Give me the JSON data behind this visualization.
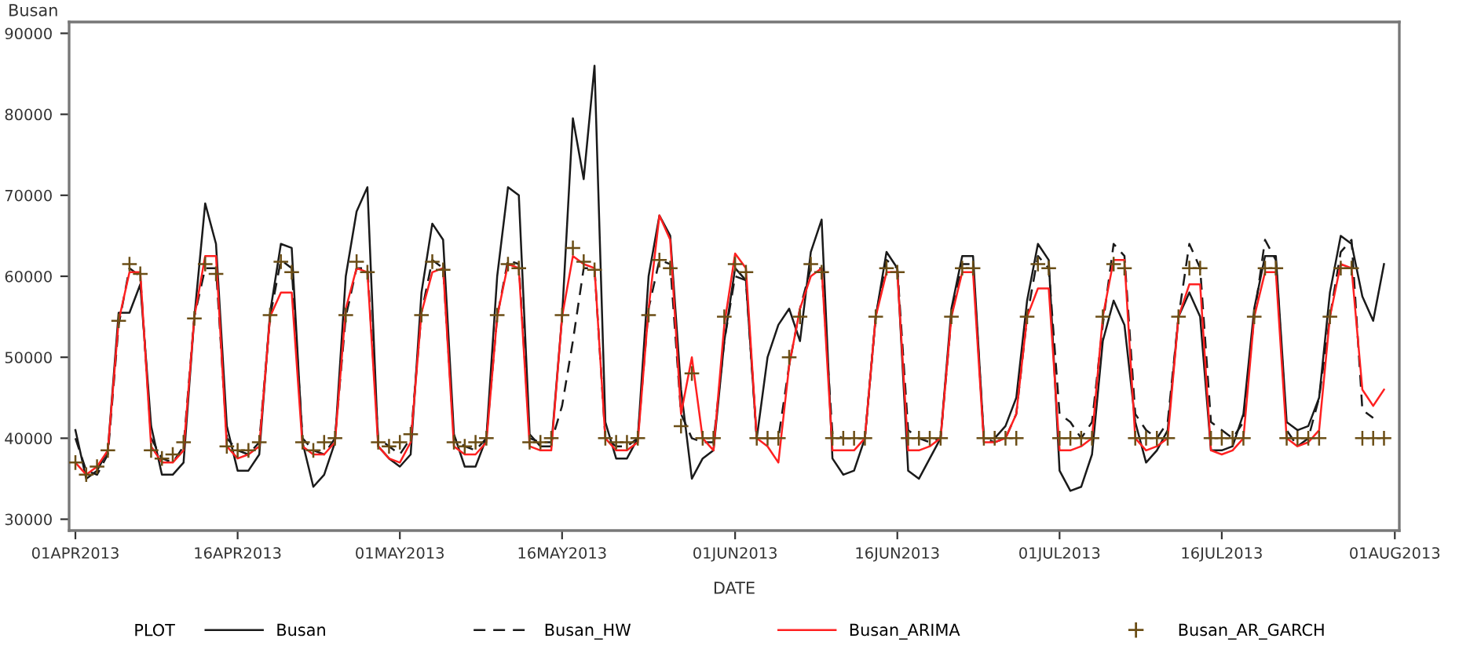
{
  "chart_data": {
    "type": "line",
    "ylabel": "Busan",
    "xlabel": "DATE",
    "legend_title": "PLOT",
    "legend": "bottom",
    "grid": false,
    "x": [
      "2013-04-01",
      "2013-04-02",
      "2013-04-03",
      "2013-04-04",
      "2013-04-05",
      "2013-04-06",
      "2013-04-07",
      "2013-04-08",
      "2013-04-09",
      "2013-04-10",
      "2013-04-11",
      "2013-04-12",
      "2013-04-13",
      "2013-04-14",
      "2013-04-15",
      "2013-04-16",
      "2013-04-17",
      "2013-04-18",
      "2013-04-19",
      "2013-04-20",
      "2013-04-21",
      "2013-04-22",
      "2013-04-23",
      "2013-04-24",
      "2013-04-25",
      "2013-04-26",
      "2013-04-27",
      "2013-04-28",
      "2013-04-29",
      "2013-04-30",
      "2013-05-01",
      "2013-05-02",
      "2013-05-03",
      "2013-05-04",
      "2013-05-05",
      "2013-05-06",
      "2013-05-07",
      "2013-05-08",
      "2013-05-09",
      "2013-05-10",
      "2013-05-11",
      "2013-05-12",
      "2013-05-13",
      "2013-05-14",
      "2013-05-15",
      "2013-05-16",
      "2013-05-17",
      "2013-05-18",
      "2013-05-19",
      "2013-05-20",
      "2013-05-21",
      "2013-05-22",
      "2013-05-23",
      "2013-05-24",
      "2013-05-25",
      "2013-05-26",
      "2013-05-27",
      "2013-05-28",
      "2013-05-29",
      "2013-05-30",
      "2013-05-31",
      "2013-06-01",
      "2013-06-02",
      "2013-06-03",
      "2013-06-04",
      "2013-06-05",
      "2013-06-06",
      "2013-06-07",
      "2013-06-08",
      "2013-06-09",
      "2013-06-10",
      "2013-06-11",
      "2013-06-12",
      "2013-06-13",
      "2013-06-14",
      "2013-06-15",
      "2013-06-16",
      "2013-06-17",
      "2013-06-18",
      "2013-06-19",
      "2013-06-20",
      "2013-06-21",
      "2013-06-22",
      "2013-06-23",
      "2013-06-24",
      "2013-06-25",
      "2013-06-26",
      "2013-06-27",
      "2013-06-28",
      "2013-06-29",
      "2013-06-30",
      "2013-07-01",
      "2013-07-02",
      "2013-07-03",
      "2013-07-04",
      "2013-07-05",
      "2013-07-06",
      "2013-07-07",
      "2013-07-08",
      "2013-07-09",
      "2013-07-10",
      "2013-07-11",
      "2013-07-12",
      "2013-07-13",
      "2013-07-14",
      "2013-07-15",
      "2013-07-16",
      "2013-07-17",
      "2013-07-18",
      "2013-07-19",
      "2013-07-20",
      "2013-07-21",
      "2013-07-22",
      "2013-07-23",
      "2013-07-24",
      "2013-07-25",
      "2013-07-26",
      "2013-07-27",
      "2013-07-28",
      "2013-07-29",
      "2013-07-30",
      "2013-07-31"
    ],
    "xlim": [
      "2013-03-31T10:00",
      "2013-08-01T10:00"
    ],
    "xticks": [
      {
        "value": "2013-04-01",
        "label": "01APR2013"
      },
      {
        "value": "2013-04-16",
        "label": "16APR2013"
      },
      {
        "value": "2013-05-01",
        "label": "01MAY2013"
      },
      {
        "value": "2013-05-16",
        "label": "16MAY2013"
      },
      {
        "value": "2013-06-01",
        "label": "01JUN2013"
      },
      {
        "value": "2013-06-16",
        "label": "16JUN2013"
      },
      {
        "value": "2013-07-01",
        "label": "01JUL2013"
      },
      {
        "value": "2013-07-16",
        "label": "16JUL2013"
      },
      {
        "value": "2013-08-01",
        "label": "01AUG2013"
      }
    ],
    "ylim": [
      28600,
      91400
    ],
    "yticks": [
      30000,
      40000,
      50000,
      60000,
      70000,
      80000,
      90000
    ],
    "series": [
      {
        "name": "Busan",
        "color": "#1a1a1a",
        "line_style": "solid",
        "values": [
          41000,
          35000,
          36000,
          38500,
          55500,
          55500,
          59000,
          41500,
          35500,
          35500,
          37000,
          55000,
          69000,
          64000,
          41500,
          36000,
          36000,
          38000,
          55500,
          64000,
          63500,
          39500,
          34000,
          35500,
          39500,
          60000,
          68000,
          71000,
          39000,
          37500,
          36500,
          38000,
          58000,
          66500,
          64500,
          40500,
          36500,
          36500,
          40000,
          60000,
          71000,
          70000,
          40500,
          39000,
          39000,
          55000,
          79500,
          72000,
          86000,
          42000,
          37500,
          37500,
          40000,
          60000,
          67500,
          65000,
          46000,
          35000,
          37500,
          38500,
          52000,
          61000,
          59500,
          40000,
          50000,
          54000,
          56000,
          52000,
          63000,
          67000,
          37500,
          35500,
          36000,
          40000,
          55000,
          63000,
          61000,
          36000,
          35000,
          37500,
          40000,
          56000,
          62500,
          62500,
          40000,
          40000,
          41500,
          45000,
          57000,
          64000,
          62000,
          36000,
          33500,
          34000,
          38000,
          52000,
          57000,
          54000,
          42000,
          37000,
          38500,
          41000,
          55000,
          58000,
          55000,
          38500,
          38500,
          39000,
          43000,
          56000,
          62500,
          62500,
          42000,
          41000,
          41500,
          45000,
          58000,
          65000,
          64000,
          57500,
          54500,
          61500
        ]
      },
      {
        "name": "Busan_HW",
        "color": "#1a1a1a",
        "line_style": "dashed",
        "values": [
          40000,
          36000,
          35500,
          38000,
          54000,
          61000,
          60000,
          40000,
          37500,
          37000,
          39000,
          55000,
          61000,
          61000,
          40000,
          38500,
          38000,
          39500,
          55000,
          62000,
          61000,
          40000,
          38500,
          38000,
          40000,
          55000,
          61000,
          61000,
          40000,
          39000,
          38000,
          40000,
          55500,
          62000,
          61000,
          40000,
          39000,
          38500,
          40000,
          55000,
          62000,
          61500,
          40000,
          39500,
          39500,
          44000,
          52000,
          61000,
          61000,
          40000,
          39000,
          39000,
          40000,
          56000,
          62000,
          61500,
          43000,
          40000,
          39500,
          39500,
          52000,
          60000,
          59500,
          40000,
          40000,
          40000,
          49000,
          56000,
          61000,
          61000,
          40500,
          40000,
          40000,
          40000,
          55000,
          62000,
          61000,
          41000,
          40000,
          39500,
          40000,
          55000,
          61500,
          61500,
          40000,
          39500,
          40000,
          43000,
          55000,
          62500,
          61000,
          43000,
          42000,
          40000,
          42000,
          54000,
          64000,
          62500,
          43000,
          41000,
          40000,
          42000,
          55000,
          64000,
          61000,
          42000,
          41000,
          40000,
          42000,
          55000,
          64500,
          62000,
          41000,
          39000,
          40000,
          45000,
          55000,
          63000,
          64500,
          43500,
          42500,
          null
        ]
      },
      {
        "name": "Busan_ARIMA",
        "color": "#ff2020",
        "line_style": "solid",
        "values": [
          37000,
          35500,
          36500,
          38500,
          54500,
          60500,
          60500,
          39000,
          37000,
          37000,
          38500,
          55000,
          62500,
          62500,
          39000,
          37500,
          38000,
          39000,
          55000,
          58000,
          58000,
          39000,
          38000,
          38000,
          39500,
          56000,
          61000,
          60500,
          39000,
          37500,
          37000,
          39500,
          55500,
          60500,
          61000,
          39000,
          38000,
          38000,
          39500,
          55000,
          61500,
          61000,
          39000,
          38500,
          38500,
          55000,
          62500,
          61500,
          61000,
          40000,
          38500,
          38500,
          39500,
          56000,
          67500,
          64500,
          43000,
          50000,
          40000,
          38500,
          54000,
          62800,
          61000,
          40000,
          39000,
          37000,
          49000,
          56000,
          60000,
          61000,
          38500,
          38500,
          38500,
          40000,
          55000,
          60500,
          60500,
          38500,
          38500,
          39000,
          40000,
          55000,
          60500,
          60500,
          39500,
          39500,
          40000,
          43000,
          55000,
          58500,
          58500,
          38500,
          38500,
          39000,
          40000,
          55000,
          62000,
          62000,
          40000,
          38500,
          39000,
          40000,
          55000,
          59000,
          59000,
          38500,
          38000,
          38500,
          40000,
          55000,
          60500,
          60500,
          40000,
          39000,
          39500,
          41000,
          55000,
          61500,
          61000,
          46000,
          44000,
          46000
        ]
      },
      {
        "name": "Busan_AR_GARCH",
        "type": "scatter",
        "marker": "cross",
        "color": "#6b4e16",
        "values": [
          37000,
          35500,
          36500,
          38500,
          54500,
          61500,
          60300,
          38500,
          37500,
          38000,
          39500,
          54800,
          61500,
          60300,
          39000,
          38500,
          38500,
          39500,
          55200,
          61800,
          60500,
          39500,
          38500,
          39500,
          40000,
          55200,
          61800,
          60500,
          39500,
          39000,
          39500,
          40500,
          55200,
          61800,
          60800,
          39500,
          39000,
          39500,
          40000,
          55200,
          61500,
          61000,
          39500,
          39500,
          40000,
          55200,
          63500,
          61800,
          60800,
          40000,
          39500,
          39500,
          40000,
          55200,
          62000,
          61000,
          41500,
          48000,
          40000,
          40000,
          55000,
          61500,
          60500,
          40000,
          40000,
          40000,
          50000,
          55000,
          61500,
          60500,
          40000,
          40000,
          40000,
          40000,
          55000,
          61000,
          60500,
          40000,
          40000,
          40000,
          40000,
          55000,
          61000,
          61000,
          40000,
          40000,
          40000,
          40000,
          55000,
          61500,
          61000,
          40000,
          40000,
          40000,
          40000,
          55000,
          61500,
          61000,
          40000,
          40000,
          40000,
          40000,
          55000,
          61000,
          61000,
          40000,
          40000,
          40000,
          40000,
          55000,
          61000,
          61000,
          40000,
          40000,
          40000,
          40000,
          55000,
          61000,
          61000,
          40000,
          40000,
          40000
        ]
      }
    ]
  }
}
